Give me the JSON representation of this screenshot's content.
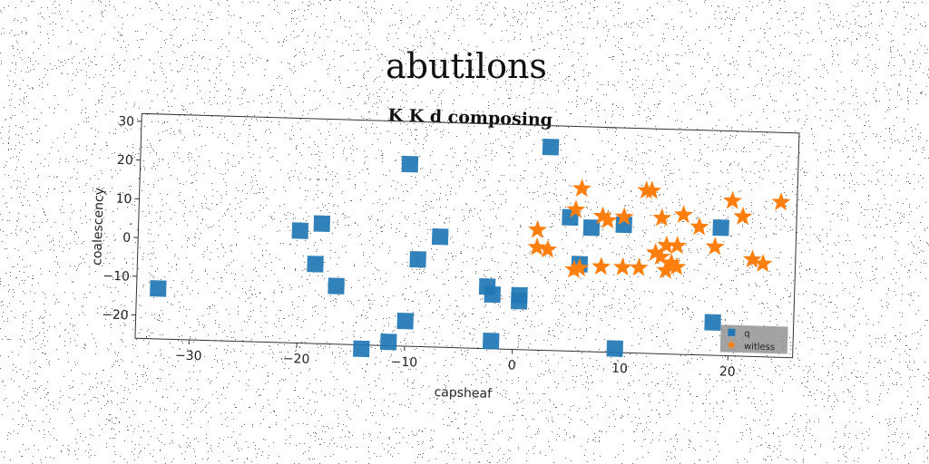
{
  "title": "abutilons",
  "chart_data": {
    "type": "scatter",
    "title": "K K d composing",
    "xlabel": "capsheaf",
    "ylabel": "coalescency",
    "xlim": [
      -35,
      26
    ],
    "ylim": [
      -26,
      32
    ],
    "xticks": [
      -30,
      -20,
      -10,
      0,
      10,
      20
    ],
    "yticks": [
      -20,
      -10,
      0,
      10,
      20,
      30
    ],
    "grid": false,
    "legend_position": "bottom-right",
    "series": [
      {
        "name": "q",
        "marker": "square",
        "color": "#1f77b4",
        "points": [
          [
            -33,
            -13
          ],
          [
            -20,
            3
          ],
          [
            -18,
            5
          ],
          [
            -18.5,
            -5.5
          ],
          [
            -16.5,
            -11
          ],
          [
            -14,
            -27
          ],
          [
            -11.5,
            -25
          ],
          [
            -10,
            -19.5
          ],
          [
            -10,
            21
          ],
          [
            -9,
            -3.5
          ],
          [
            -7,
            2.5
          ],
          [
            -2.5,
            -10
          ],
          [
            -2,
            -12
          ],
          [
            -2,
            -24
          ],
          [
            0.5,
            -12
          ],
          [
            0.5,
            -13.5
          ],
          [
            3,
            26.5
          ],
          [
            5,
            8.5
          ],
          [
            6,
            -3.5
          ],
          [
            7,
            6
          ],
          [
            10,
            7
          ],
          [
            9.5,
            -25
          ],
          [
            19,
            7
          ],
          [
            18.5,
            -17.5
          ]
        ]
      },
      {
        "name": "witless",
        "marker": "star",
        "color": "#ff7f0e",
        "points": [
          [
            2,
            5
          ],
          [
            2,
            0.5
          ],
          [
            3,
            0
          ],
          [
            5.5,
            10.5
          ],
          [
            6,
            16
          ],
          [
            5.5,
            -5
          ],
          [
            6,
            -4.5
          ],
          [
            8,
            -4
          ],
          [
            8,
            9
          ],
          [
            8.5,
            8
          ],
          [
            10,
            9
          ],
          [
            10,
            -4
          ],
          [
            11.5,
            -4
          ],
          [
            12,
            16
          ],
          [
            12.5,
            16
          ],
          [
            13,
            0
          ],
          [
            13.5,
            -1
          ],
          [
            13.5,
            9
          ],
          [
            14,
            2
          ],
          [
            14,
            -4.5
          ],
          [
            14.5,
            -2.5
          ],
          [
            15,
            -3.5
          ],
          [
            15,
            2
          ],
          [
            15.5,
            10
          ],
          [
            17,
            7
          ],
          [
            18.5,
            2
          ],
          [
            20,
            14
          ],
          [
            21,
            10
          ],
          [
            22,
            -1
          ],
          [
            23,
            -2
          ],
          [
            24.5,
            14
          ]
        ]
      }
    ]
  }
}
